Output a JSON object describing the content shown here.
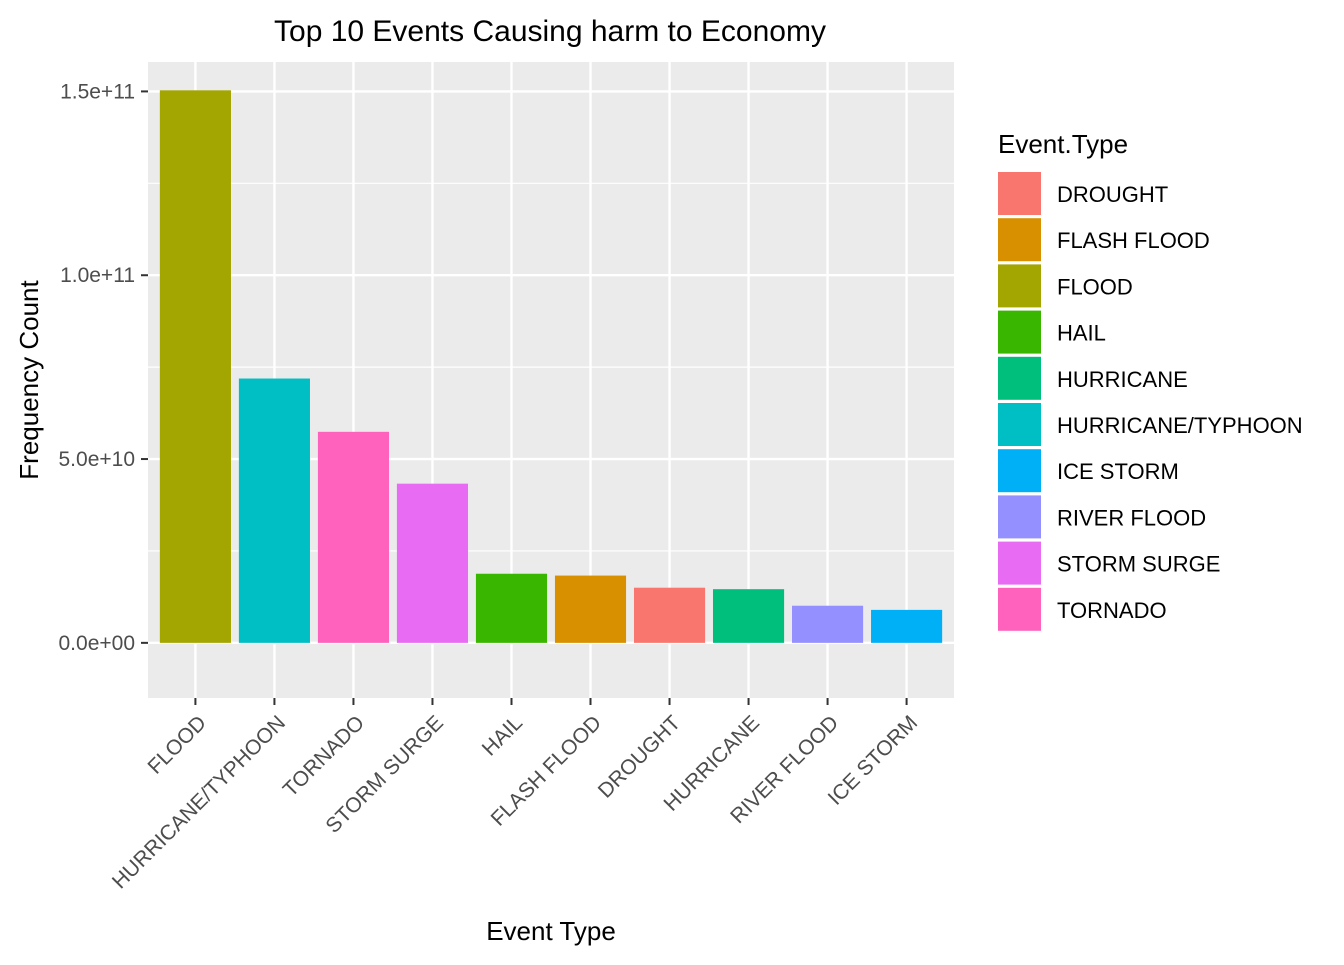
{
  "chart_data": {
    "type": "bar",
    "title": "Top 10 Events Causing harm to Economy",
    "xlabel": "Event Type",
    "ylabel": "Frequency Count",
    "ylim": [
      -15000000000,
      158000000000
    ],
    "yticks": [
      {
        "value": 0,
        "label": "0.0e+00"
      },
      {
        "value": 50000000000,
        "label": "5.0e+10"
      },
      {
        "value": 100000000000,
        "label": "1.0e+11"
      },
      {
        "value": 150000000000,
        "label": "1.5e+11"
      }
    ],
    "categories": [
      "FLOOD",
      "HURRICANE/TYPHOON",
      "TORNADO",
      "STORM SURGE",
      "HAIL",
      "FLASH FLOOD",
      "DROUGHT",
      "HURRICANE",
      "RIVER FLOOD",
      "ICE STORM"
    ],
    "values": [
      150300000000,
      71900000000,
      57400000000,
      43300000000,
      18800000000,
      18300000000,
      15000000000,
      14600000000,
      10100000000,
      8970000000
    ],
    "grid": true,
    "legend": {
      "title": "Event.Type",
      "placement": "right",
      "entries": [
        {
          "label": "DROUGHT",
          "color": "#F8766D"
        },
        {
          "label": "FLASH FLOOD",
          "color": "#D89000"
        },
        {
          "label": "FLOOD",
          "color": "#A3A500"
        },
        {
          "label": "HAIL",
          "color": "#39B600"
        },
        {
          "label": "HURRICANE",
          "color": "#00BF7D"
        },
        {
          "label": "HURRICANE/TYPHOON",
          "color": "#00BFC4"
        },
        {
          "label": "ICE STORM",
          "color": "#00B0F6"
        },
        {
          "label": "RIVER FLOOD",
          "color": "#9590FF"
        },
        {
          "label": "STORM SURGE",
          "color": "#E76BF3"
        },
        {
          "label": "TORNADO",
          "color": "#FF62BC"
        }
      ]
    }
  }
}
